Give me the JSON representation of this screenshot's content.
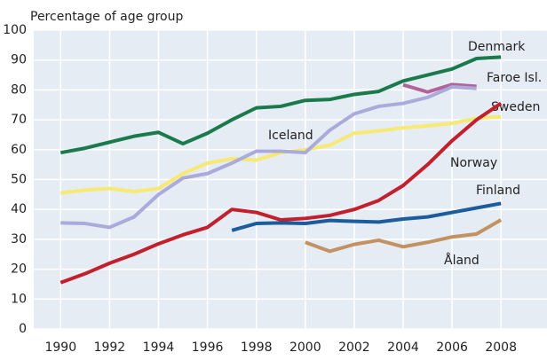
{
  "chart_data": {
    "type": "line",
    "y_label": "Percentage of age group",
    "x": [
      1990,
      1991,
      1992,
      1993,
      1994,
      1995,
      1996,
      1997,
      1998,
      1999,
      2000,
      2001,
      2002,
      2003,
      2004,
      2005,
      2006,
      2007,
      2008
    ],
    "xlim": [
      1988.9,
      2009.3
    ],
    "xticks": [
      1990,
      1992,
      1994,
      1996,
      1998,
      2000,
      2002,
      2004,
      2006,
      2008
    ],
    "ylim": [
      0,
      100
    ],
    "yticks": [
      0,
      10,
      20,
      30,
      40,
      50,
      60,
      70,
      80,
      90,
      100
    ],
    "grid": true,
    "series": [
      {
        "name": "Denmark",
        "color": "#1b7a4c",
        "values": [
          59,
          60.5,
          62.5,
          64.5,
          65.8,
          62,
          65.5,
          70,
          74,
          74.5,
          76.5,
          76.8,
          78.5,
          79.5,
          83,
          85,
          87,
          90.5,
          91
        ]
      },
      {
        "name": "Faroe Isl.",
        "color": "#b0649a",
        "values": [
          null,
          null,
          null,
          null,
          null,
          null,
          null,
          null,
          null,
          null,
          null,
          null,
          null,
          null,
          81.7,
          79.3,
          81.8,
          81.2,
          null
        ]
      },
      {
        "name": "Sweden",
        "color": "#f6ea72",
        "values": [
          45.5,
          46.5,
          47,
          46,
          47,
          52,
          55.5,
          57,
          56.5,
          59,
          60,
          61.5,
          65.5,
          66.3,
          67.3,
          68,
          68.8,
          70.5,
          71
        ]
      },
      {
        "name": "Iceland",
        "color": "#aaaadb",
        "values": [
          35.5,
          35.3,
          34,
          37.5,
          45,
          50.5,
          52,
          55.5,
          59.5,
          59.5,
          59,
          66.5,
          72,
          74.5,
          75.5,
          77.5,
          81,
          80.5,
          null
        ]
      },
      {
        "name": "Norway",
        "color": "#c1202c",
        "values": [
          15.5,
          18.5,
          22,
          25,
          28.5,
          31.5,
          34,
          40,
          39,
          36.5,
          37,
          38,
          40,
          43,
          48,
          55,
          63,
          70,
          75.5
        ]
      },
      {
        "name": "Finland",
        "color": "#1b5c9c",
        "values": [
          null,
          null,
          null,
          null,
          null,
          null,
          null,
          33,
          35.3,
          35.5,
          35.3,
          36.3,
          36,
          35.8,
          36.8,
          37.5,
          39,
          40.5,
          42
        ]
      },
      {
        "name": "Åland",
        "color": "#c29263",
        "values": [
          null,
          null,
          null,
          null,
          null,
          null,
          null,
          null,
          null,
          null,
          29,
          26,
          28.3,
          29.7,
          27.5,
          29,
          30.8,
          31.8,
          36.5
        ]
      }
    ]
  }
}
